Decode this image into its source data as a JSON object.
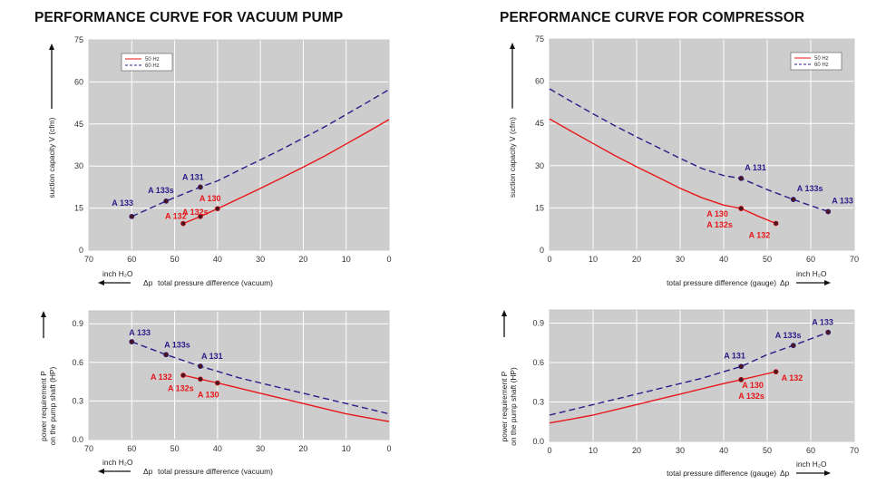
{
  "colors": {
    "red": "#e8161a",
    "blue": "#2a1d8a",
    "plot_bg": "#cdcdcd",
    "grid": "#ffffff"
  },
  "titles": {
    "left": "PERFORMANCE CURVE FOR VACUUM PUMP",
    "right": "PERFORMANCE CURVE FOR COMPRESSOR"
  },
  "chart_data": [
    {
      "id": "vac-flow",
      "type": "line",
      "title": "PERFORMANCE CURVE FOR VACUUM PUMP",
      "xlabel": "total pressure difference (vacuum)",
      "xprefix": "Δp",
      "xunit": "inch H₂O",
      "ylabel": "suction capacity V (cfm)",
      "xlim": [
        70,
        0
      ],
      "ylim": [
        0,
        75
      ],
      "xticks": [
        70,
        60,
        50,
        40,
        30,
        20,
        10,
        0
      ],
      "yticks": [
        0,
        15,
        30,
        45,
        60,
        75
      ],
      "grid": true,
      "legend": {
        "placement": "top-left",
        "entries": [
          "50 Hz",
          "60 Hz"
        ]
      },
      "series": [
        {
          "name": "50 Hz",
          "style": "solid",
          "color": "red",
          "x": [
            48,
            44,
            40,
            35,
            30,
            25,
            20,
            15,
            10,
            5,
            0
          ],
          "y": [
            9.5,
            12.0,
            14.8,
            18.4,
            22.0,
            25.8,
            29.6,
            33.6,
            37.9,
            42.2,
            46.6
          ]
        },
        {
          "name": "60 Hz",
          "style": "dashed",
          "color": "blue",
          "x": [
            60,
            52,
            44,
            40,
            35,
            30,
            25,
            20,
            15,
            10,
            5,
            0
          ],
          "y": [
            12.0,
            17.5,
            22.5,
            24.7,
            28.5,
            32.2,
            36.0,
            40.0,
            44.0,
            48.4,
            52.8,
            57.3
          ]
        }
      ],
      "points": [
        {
          "label": "A 133",
          "x": 60,
          "y": 12.0,
          "color": "blue",
          "dx": -22,
          "dy": -12
        },
        {
          "label": "A 133s",
          "x": 52,
          "y": 17.5,
          "color": "blue",
          "dx": -20,
          "dy": -9
        },
        {
          "label": "A 131",
          "x": 44,
          "y": 22.5,
          "color": "blue",
          "dx": -20,
          "dy": -8
        },
        {
          "label": "A 130",
          "x": 40,
          "y": 14.8,
          "color": "red",
          "dx": -20,
          "dy": -8
        },
        {
          "label": "A 132s",
          "x": 44,
          "y": 12.0,
          "color": "red",
          "dx": -20,
          "dy": -2
        },
        {
          "label": "A 132",
          "x": 48,
          "y": 9.5,
          "color": "red",
          "dx": -20,
          "dy": -5
        }
      ]
    },
    {
      "id": "cmp-flow",
      "type": "line",
      "title": "PERFORMANCE CURVE FOR COMPRESSOR",
      "xlabel": "total pressure difference (gauge)",
      "xprefix": "Δp",
      "xunit": "inch H₂O",
      "ylabel": "suction capacity V (cfm)",
      "xlim": [
        0,
        70
      ],
      "ylim": [
        0,
        75
      ],
      "xticks": [
        0,
        10,
        20,
        30,
        40,
        50,
        60,
        70
      ],
      "yticks": [
        0,
        15,
        30,
        45,
        60,
        75
      ],
      "grid": true,
      "legend": {
        "placement": "top-right",
        "entries": [
          "50 Hz",
          "60 Hz"
        ]
      },
      "series": [
        {
          "name": "50 Hz",
          "style": "solid",
          "color": "red",
          "x": [
            0,
            5,
            10,
            15,
            20,
            25,
            30,
            35,
            40,
            44,
            48,
            52
          ],
          "y": [
            46.6,
            42.2,
            37.9,
            33.6,
            29.6,
            25.8,
            22.0,
            18.6,
            16.0,
            14.8,
            12.0,
            9.5
          ]
        },
        {
          "name": "60 Hz",
          "style": "dashed",
          "color": "blue",
          "x": [
            0,
            5,
            10,
            15,
            20,
            25,
            30,
            35,
            40,
            44,
            50,
            56,
            60,
            64
          ],
          "y": [
            57.3,
            52.8,
            48.4,
            44.2,
            40.2,
            36.4,
            32.6,
            29.0,
            26.5,
            25.5,
            21.5,
            18.0,
            15.8,
            13.7
          ]
        }
      ],
      "points": [
        {
          "label": "A 131",
          "x": 44,
          "y": 25.5,
          "color": "blue",
          "dx": 4,
          "dy": -9
        },
        {
          "label": "A 133s",
          "x": 56,
          "y": 18.0,
          "color": "blue",
          "dx": 4,
          "dy": -9
        },
        {
          "label": "A 133",
          "x": 64,
          "y": 13.7,
          "color": "blue",
          "dx": 4,
          "dy": -9
        },
        {
          "label": "A 130",
          "x": 44,
          "y": 14.8,
          "color": "red",
          "dx": -38,
          "dy": 9
        },
        {
          "label": "A 132s",
          "x": 44,
          "y": 14.8,
          "color": "red",
          "dx": -38,
          "dy": 21
        },
        {
          "label": "A 132",
          "x": 52,
          "y": 9.5,
          "color": "red",
          "dx": -30,
          "dy": 16
        }
      ]
    },
    {
      "id": "vac-power",
      "type": "line",
      "xlabel": "total pressure difference (vacuum)",
      "xprefix": "Δp",
      "xunit": "inch H₂O",
      "ylabel_line1": "power requirement P",
      "ylabel_line2": "on the pump shaft (HP)",
      "xlim": [
        70,
        0
      ],
      "ylim": [
        0,
        1.0
      ],
      "xticks": [
        70,
        60,
        50,
        40,
        30,
        20,
        10,
        0
      ],
      "yticks": [
        0.0,
        0.3,
        0.6,
        0.9
      ],
      "grid": true,
      "series": [
        {
          "name": "50 Hz",
          "style": "solid",
          "color": "red",
          "x": [
            48,
            44,
            40,
            35,
            30,
            25,
            20,
            15,
            10,
            5,
            0
          ],
          "y": [
            0.5,
            0.47,
            0.44,
            0.4,
            0.36,
            0.32,
            0.28,
            0.24,
            0.2,
            0.17,
            0.14
          ]
        },
        {
          "name": "60 Hz",
          "style": "dashed",
          "color": "blue",
          "x": [
            60,
            52,
            44,
            40,
            35,
            30,
            25,
            20,
            15,
            10,
            5,
            0
          ],
          "y": [
            0.76,
            0.66,
            0.57,
            0.53,
            0.48,
            0.44,
            0.4,
            0.36,
            0.32,
            0.28,
            0.24,
            0.2
          ]
        }
      ],
      "points": [
        {
          "label": "A 133",
          "x": 60,
          "y": 0.76,
          "color": "blue",
          "dx": -3,
          "dy": -7
        },
        {
          "label": "A 133s",
          "x": 52,
          "y": 0.66,
          "color": "blue",
          "dx": -2,
          "dy": -8
        },
        {
          "label": "A 131",
          "x": 44,
          "y": 0.57,
          "color": "blue",
          "dx": 1,
          "dy": -8
        },
        {
          "label": "A 132",
          "x": 48,
          "y": 0.5,
          "color": "red",
          "dx": -36,
          "dy": 5
        },
        {
          "label": "A 132s",
          "x": 44,
          "y": 0.47,
          "color": "red",
          "dx": -36,
          "dy": 13
        },
        {
          "label": "A 130",
          "x": 40,
          "y": 0.44,
          "color": "red",
          "dx": -22,
          "dy": 16
        }
      ]
    },
    {
      "id": "cmp-power",
      "type": "line",
      "xlabel": "total pressure difference (gauge)",
      "xprefix": "Δp",
      "xunit": "inch H₂O",
      "ylabel_line1": "power requirement P",
      "ylabel_line2": "on the pump shaft (HP)",
      "xlim": [
        0,
        70
      ],
      "ylim": [
        0,
        1.0
      ],
      "xticks": [
        0,
        10,
        20,
        30,
        40,
        50,
        60,
        70
      ],
      "yticks": [
        0.0,
        0.3,
        0.6,
        0.9
      ],
      "grid": true,
      "series": [
        {
          "name": "50 Hz",
          "style": "solid",
          "color": "red",
          "x": [
            0,
            5,
            10,
            15,
            20,
            25,
            30,
            35,
            40,
            44,
            48,
            52
          ],
          "y": [
            0.14,
            0.17,
            0.2,
            0.24,
            0.28,
            0.32,
            0.36,
            0.4,
            0.44,
            0.47,
            0.5,
            0.53
          ]
        },
        {
          "name": "60 Hz",
          "style": "dashed",
          "color": "blue",
          "x": [
            0,
            5,
            10,
            15,
            20,
            25,
            30,
            35,
            40,
            44,
            50,
            56,
            60,
            64
          ],
          "y": [
            0.2,
            0.24,
            0.28,
            0.32,
            0.36,
            0.4,
            0.44,
            0.48,
            0.53,
            0.57,
            0.66,
            0.73,
            0.78,
            0.83
          ]
        }
      ],
      "points": [
        {
          "label": "A 131",
          "x": 44,
          "y": 0.57,
          "color": "blue",
          "dx": -19,
          "dy": -9
        },
        {
          "label": "A 133s",
          "x": 56,
          "y": 0.73,
          "color": "blue",
          "dx": -20,
          "dy": -8
        },
        {
          "label": "A 133",
          "x": 64,
          "y": 0.83,
          "color": "blue",
          "dx": -18,
          "dy": -8
        },
        {
          "label": "A 130",
          "x": 44,
          "y": 0.47,
          "color": "red",
          "dx": 1,
          "dy": 9
        },
        {
          "label": "A 132s",
          "x": 44,
          "y": 0.47,
          "color": "red",
          "dx": -3,
          "dy": 21
        },
        {
          "label": "A 132",
          "x": 52,
          "y": 0.53,
          "color": "red",
          "dx": 6,
          "dy": 10
        }
      ]
    }
  ]
}
